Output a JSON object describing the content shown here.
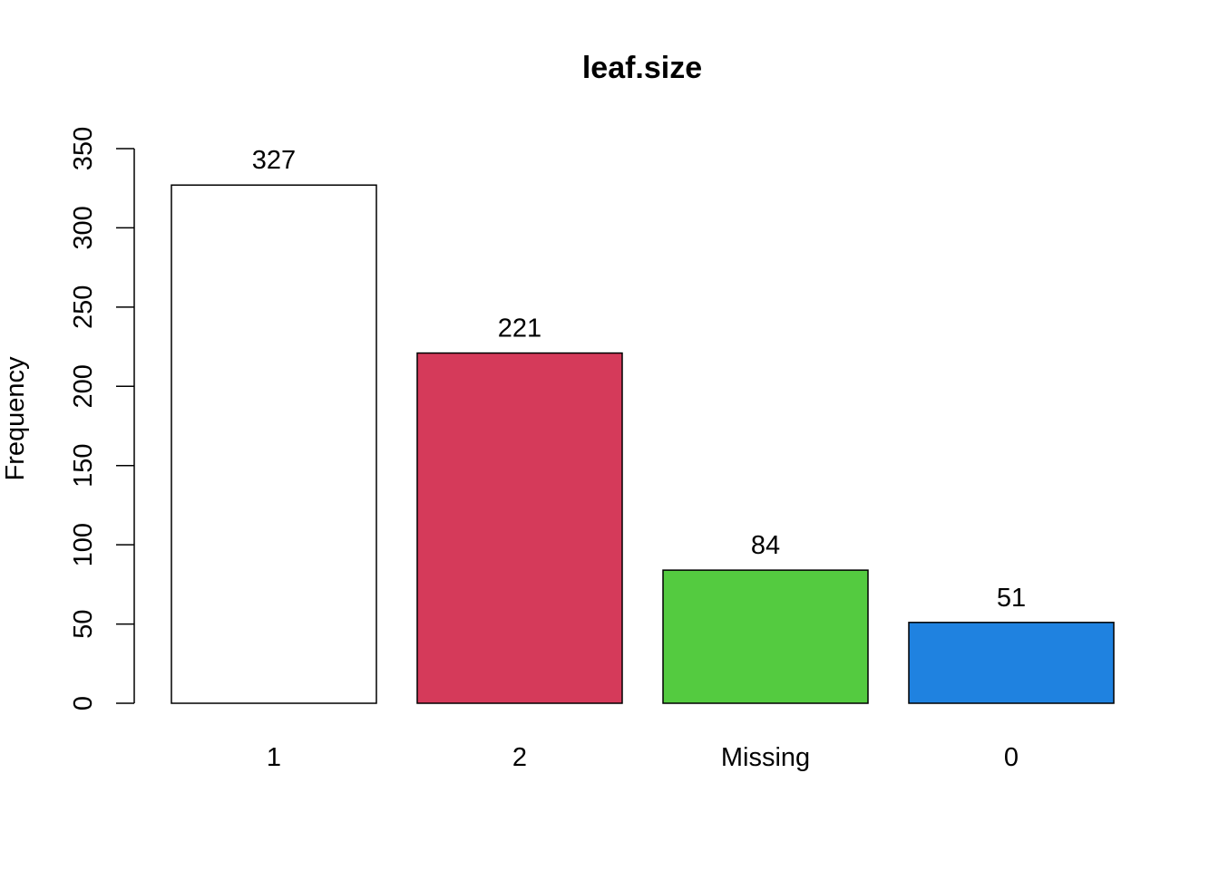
{
  "chart_data": {
    "type": "bar",
    "title": "leaf.size",
    "xlabel": "",
    "ylabel": "Frequency",
    "categories": [
      "1",
      "2",
      "Missing",
      "0"
    ],
    "values": [
      327,
      221,
      84,
      51
    ],
    "colors": [
      "#ffffff",
      "#d53a5a",
      "#54cb40",
      "#1f82e0"
    ],
    "ylim": [
      0,
      350
    ],
    "yticks": [
      0,
      50,
      100,
      150,
      200,
      250,
      300,
      350
    ],
    "grid": false,
    "legend": "none"
  }
}
